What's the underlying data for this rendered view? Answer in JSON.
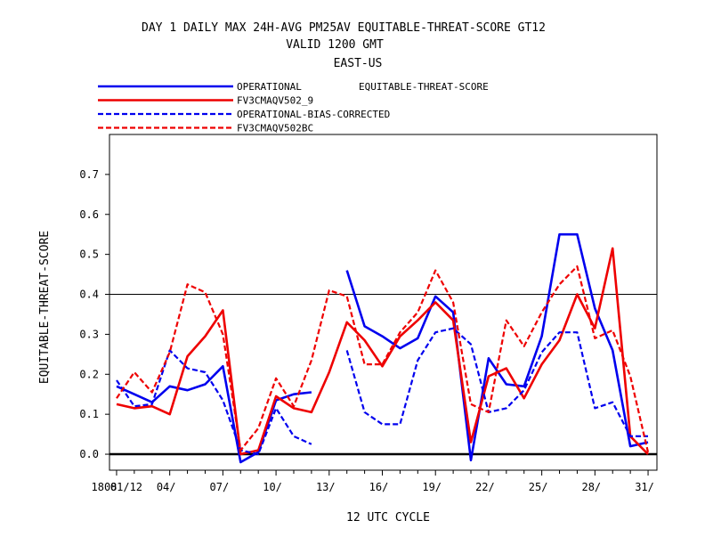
{
  "chart_data": {
    "type": "line",
    "title_lines": [
      "DAY 1 DAILY MAX   24H-AVG PM25AV EQUITABLE-THREAT-SCORE GT12",
      "VALID 1200 GMT",
      "EAST-US"
    ],
    "legend_title": "EQUITABLE-THREAT-SCORE",
    "xlabel": "12 UTC CYCLE",
    "ylabel": "EQUITABLE-THREAT-SCORE",
    "x_tick_labels": [
      "1808",
      "01/12",
      "04/",
      "07/",
      "10/",
      "13/",
      "16/",
      "19/",
      "22/",
      "25/",
      "28/",
      "31/"
    ],
    "x_tick_days": [
      1,
      4,
      7,
      10,
      13,
      16,
      19,
      22,
      25,
      28,
      31
    ],
    "xlim": [
      0.6,
      31.5
    ],
    "ylim": [
      -0.04,
      0.8
    ],
    "y_ticks": [
      0.0,
      0.1,
      0.2,
      0.3,
      0.4,
      0.5,
      0.6,
      0.7
    ],
    "y_tick_labels": [
      "0.0",
      "0.1",
      "0.2",
      "0.3",
      "0.4",
      "0.5",
      "0.6",
      "0.7"
    ],
    "reference_lines": [
      0.0,
      0.4
    ],
    "legend_position": "top-left above plot",
    "series": [
      {
        "name": "OPERATIONAL",
        "color": "#0000ee",
        "style": "solid",
        "points": [
          [
            1,
            0.17
          ],
          [
            2,
            0.15
          ],
          [
            3,
            0.13
          ],
          [
            4,
            0.17
          ],
          [
            5,
            0.16
          ],
          [
            6,
            0.175
          ],
          [
            7,
            0.22
          ],
          [
            8,
            -0.02
          ],
          [
            9,
            0.005
          ],
          [
            10,
            0.135
          ],
          [
            11,
            0.15
          ],
          [
            12,
            0.155
          ],
          [
            14,
            0.46
          ],
          [
            15,
            0.32
          ],
          [
            16,
            0.295
          ],
          [
            17,
            0.265
          ],
          [
            18,
            0.29
          ],
          [
            19,
            0.395
          ],
          [
            20,
            0.355
          ],
          [
            21,
            -0.015
          ],
          [
            22,
            0.24
          ],
          [
            23,
            0.175
          ],
          [
            24,
            0.17
          ],
          [
            25,
            0.295
          ],
          [
            26,
            0.55
          ],
          [
            27,
            0.55
          ],
          [
            28,
            0.365
          ],
          [
            29,
            0.26
          ],
          [
            30,
            0.02
          ],
          [
            31,
            0.03
          ]
        ]
      },
      {
        "name": "FV3CMAQV502_9",
        "color": "#ee0000",
        "style": "solid",
        "points": [
          [
            1,
            0.125
          ],
          [
            2,
            0.115
          ],
          [
            3,
            0.12
          ],
          [
            4,
            0.1
          ],
          [
            5,
            0.245
          ],
          [
            6,
            0.295
          ],
          [
            7,
            0.36
          ],
          [
            8,
            0.0
          ],
          [
            9,
            0.01
          ],
          [
            10,
            0.145
          ],
          [
            11,
            0.115
          ],
          [
            12,
            0.105
          ],
          [
            13,
            0.205
          ],
          [
            14,
            0.33
          ],
          [
            15,
            0.285
          ],
          [
            16,
            0.22
          ],
          [
            17,
            0.295
          ],
          [
            18,
            0.335
          ],
          [
            19,
            0.38
          ],
          [
            20,
            0.335
          ],
          [
            21,
            0.03
          ],
          [
            22,
            0.195
          ],
          [
            23,
            0.215
          ],
          [
            24,
            0.14
          ],
          [
            25,
            0.225
          ],
          [
            26,
            0.285
          ],
          [
            27,
            0.4
          ],
          [
            28,
            0.315
          ],
          [
            29,
            0.515
          ],
          [
            30,
            0.045
          ],
          [
            31,
            0.0
          ]
        ]
      },
      {
        "name": "OPERATIONAL-BIAS-CORRECTED",
        "color": "#0000ee",
        "style": "dashed",
        "points": [
          [
            1,
            0.185
          ],
          [
            2,
            0.12
          ],
          [
            3,
            0.125
          ],
          [
            4,
            0.26
          ],
          [
            5,
            0.215
          ],
          [
            6,
            0.205
          ],
          [
            7,
            0.135
          ],
          [
            8,
            0.01
          ],
          [
            9,
            0.0
          ],
          [
            10,
            0.115
          ],
          [
            11,
            0.045
          ],
          [
            12,
            0.025
          ],
          [
            14,
            0.26
          ],
          [
            15,
            0.105
          ],
          [
            16,
            0.075
          ],
          [
            17,
            0.075
          ],
          [
            18,
            0.235
          ],
          [
            19,
            0.305
          ],
          [
            20,
            0.315
          ],
          [
            21,
            0.275
          ],
          [
            22,
            0.105
          ],
          [
            23,
            0.115
          ],
          [
            24,
            0.16
          ],
          [
            25,
            0.255
          ],
          [
            26,
            0.305
          ],
          [
            27,
            0.305
          ],
          [
            28,
            0.115
          ],
          [
            29,
            0.13
          ],
          [
            30,
            0.045
          ],
          [
            31,
            0.045
          ]
        ]
      },
      {
        "name": "FV3CMAQV502BC",
        "color": "#ee0000",
        "style": "dashed",
        "points": [
          [
            1,
            0.14
          ],
          [
            2,
            0.205
          ],
          [
            3,
            0.155
          ],
          [
            4,
            0.255
          ],
          [
            5,
            0.425
          ],
          [
            6,
            0.405
          ],
          [
            7,
            0.3
          ],
          [
            8,
            0.01
          ],
          [
            9,
            0.065
          ],
          [
            10,
            0.19
          ],
          [
            11,
            0.12
          ],
          [
            12,
            0.235
          ],
          [
            13,
            0.41
          ],
          [
            14,
            0.395
          ],
          [
            15,
            0.225
          ],
          [
            16,
            0.225
          ],
          [
            17,
            0.305
          ],
          [
            18,
            0.355
          ],
          [
            19,
            0.46
          ],
          [
            20,
            0.38
          ],
          [
            21,
            0.125
          ],
          [
            22,
            0.105
          ],
          [
            23,
            0.335
          ],
          [
            24,
            0.27
          ],
          [
            25,
            0.355
          ],
          [
            26,
            0.425
          ],
          [
            27,
            0.47
          ],
          [
            28,
            0.29
          ],
          [
            29,
            0.31
          ],
          [
            30,
            0.195
          ],
          [
            31,
            0.005
          ]
        ]
      }
    ]
  }
}
